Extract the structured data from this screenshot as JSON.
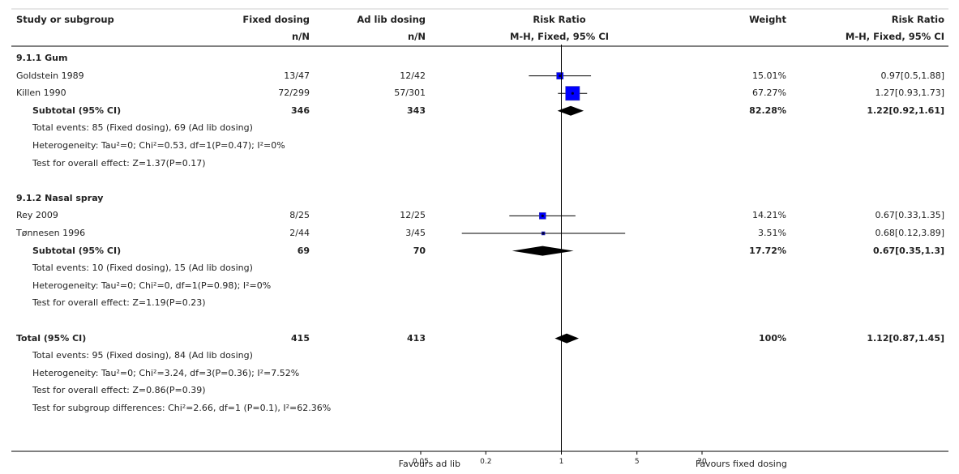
{
  "header": {
    "study": "Study or subgroup",
    "group1": "Fixed dosing",
    "group1_sub": "n/N",
    "group2": "Ad lib dosing",
    "group2_sub": "n/N",
    "plot": "Risk Ratio",
    "plot_sub": "M-H, Fixed, 95% CI",
    "weight": "Weight",
    "effect": "Risk Ratio",
    "effect_sub": "M-H, Fixed, 95% CI"
  },
  "rows": [
    {
      "kind": "heading",
      "label": "9.1.1 Gum"
    },
    {
      "kind": "study",
      "label": "Goldstein 1989",
      "g1": "13/47",
      "g2": "12/42",
      "weight": "15.01%",
      "effect": "0.97[0.5,1.88]"
    },
    {
      "kind": "study",
      "label": "Killen 1990",
      "g1": "72/299",
      "g2": "57/301",
      "weight": "67.27%",
      "effect": "1.27[0.93,1.73]"
    },
    {
      "kind": "subtotal",
      "label": "Subtotal (95% CI)",
      "g1": "346",
      "g2": "343",
      "weight": "82.28%",
      "effect": "1.22[0.92,1.61]"
    },
    {
      "kind": "note",
      "label": "Total events: 85 (Fixed dosing), 69 (Ad lib dosing)"
    },
    {
      "kind": "note",
      "label": "Heterogeneity: Tau²=0; Chi²=0.53, df=1(P=0.47); I²=0%"
    },
    {
      "kind": "note",
      "label": "Test for overall effect: Z=1.37(P=0.17)"
    },
    {
      "kind": "blank",
      "label": ""
    },
    {
      "kind": "heading",
      "label": "9.1.2 Nasal spray"
    },
    {
      "kind": "study",
      "label": "Rey 2009",
      "g1": "8/25",
      "g2": "12/25",
      "weight": "14.21%",
      "effect": "0.67[0.33,1.35]"
    },
    {
      "kind": "study",
      "label": "Tønnesen 1996",
      "g1": "2/44",
      "g2": "3/45",
      "weight": "3.51%",
      "effect": "0.68[0.12,3.89]"
    },
    {
      "kind": "subtotal",
      "label": "Subtotal (95% CI)",
      "g1": "69",
      "g2": "70",
      "weight": "17.72%",
      "effect": "0.67[0.35,1.3]"
    },
    {
      "kind": "note",
      "label": "Total events: 10 (Fixed dosing), 15 (Ad lib dosing)"
    },
    {
      "kind": "note",
      "label": "Heterogeneity: Tau²=0; Chi²=0, df=1(P=0.98); I²=0%"
    },
    {
      "kind": "note",
      "label": "Test for overall effect: Z=1.19(P=0.23)"
    },
    {
      "kind": "blank",
      "label": ""
    },
    {
      "kind": "total",
      "label": "Total (95% CI)",
      "g1": "415",
      "g2": "413",
      "weight": "100%",
      "effect": "1.12[0.87,1.45]"
    },
    {
      "kind": "note",
      "label": "Total events: 95 (Fixed dosing), 84 (Ad lib dosing)"
    },
    {
      "kind": "note",
      "label": "Heterogeneity: Tau²=0; Chi²=3.24, df=3(P=0.36); I²=7.52%"
    },
    {
      "kind": "note",
      "label": "Test for overall effect: Z=0.86(P=0.39)"
    },
    {
      "kind": "note",
      "label": "Test for subgroup differences: Chi²=2.66, df=1 (P=0.1), I²=62.36%"
    }
  ],
  "axis": {
    "left_label": "Favours ad lib",
    "right_label": "Favours fixed dosing",
    "ticks": [
      {
        "value": 0.05,
        "label": "0.05"
      },
      {
        "value": 0.2,
        "label": "0.2"
      },
      {
        "value": 1,
        "label": "1"
      },
      {
        "value": 5,
        "label": "5"
      },
      {
        "value": 20,
        "label": "20"
      }
    ]
  },
  "chart_data": {
    "type": "forest",
    "scale": "log",
    "xlim": [
      0.05,
      20
    ],
    "null_line": 1,
    "studies": [
      {
        "name": "Goldstein 1989",
        "rr": 0.97,
        "lo": 0.5,
        "hi": 1.88,
        "weight": 15.01,
        "group": "9.1.1 Gum"
      },
      {
        "name": "Killen 1990",
        "rr": 1.27,
        "lo": 0.93,
        "hi": 1.73,
        "weight": 67.27,
        "group": "9.1.1 Gum"
      },
      {
        "name": "Rey 2009",
        "rr": 0.67,
        "lo": 0.33,
        "hi": 1.35,
        "weight": 14.21,
        "group": "9.1.2 Nasal spray"
      },
      {
        "name": "Tønnesen 1996",
        "rr": 0.68,
        "lo": 0.12,
        "hi": 3.89,
        "weight": 3.51,
        "group": "9.1.2 Nasal spray"
      }
    ],
    "diamonds": [
      {
        "name": "Subtotal 9.1.1 Gum",
        "rr": 1.22,
        "lo": 0.92,
        "hi": 1.61
      },
      {
        "name": "Subtotal 9.1.2 Nasal spray",
        "rr": 0.67,
        "lo": 0.35,
        "hi": 1.3
      },
      {
        "name": "Total",
        "rr": 1.12,
        "lo": 0.87,
        "hi": 1.45
      }
    ],
    "colors": {
      "square": "#0000ff",
      "square_border": "#3333aa",
      "line": "#000000",
      "diamond": "#000000"
    }
  }
}
